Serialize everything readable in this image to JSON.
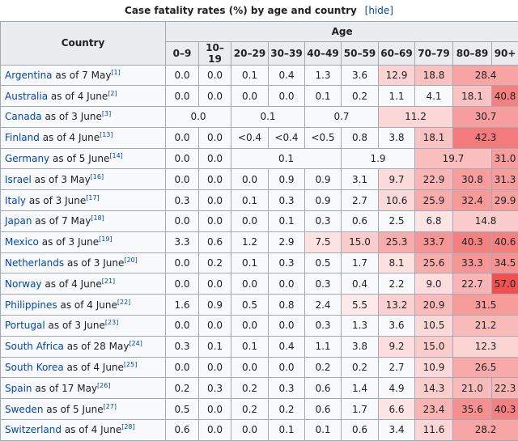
{
  "caption": {
    "title": "Case fatality rates (%) by age and country",
    "hide_label": "[hide]"
  },
  "header": {
    "country_label": "Country",
    "age_label": "Age",
    "age_groups": [
      "0–9",
      "10–19",
      "20–29",
      "30–39",
      "40–49",
      "50–59",
      "60–69",
      "70–79",
      "80–89",
      "90+"
    ]
  },
  "rows": [
    {
      "country": "Argentina",
      "date": " as of 7 May",
      "ref": "[1]",
      "cells": [
        {
          "v": "0.0",
          "s": 1
        },
        {
          "v": "0.0",
          "s": 1
        },
        {
          "v": "0.1",
          "s": 1
        },
        {
          "v": "0.4",
          "s": 1
        },
        {
          "v": "1.3",
          "s": 1
        },
        {
          "v": "3.6",
          "s": 1
        },
        {
          "v": "12.9",
          "s": 1
        },
        {
          "v": "18.8",
          "s": 1
        },
        {
          "v": "28.4",
          "s": 2
        }
      ]
    },
    {
      "country": "Australia",
      "date": " as of 4 June",
      "ref": "[2]",
      "cells": [
        {
          "v": "0.0",
          "s": 1
        },
        {
          "v": "0.0",
          "s": 1
        },
        {
          "v": "0.0",
          "s": 1
        },
        {
          "v": "0.0",
          "s": 1
        },
        {
          "v": "0.1",
          "s": 1
        },
        {
          "v": "0.2",
          "s": 1
        },
        {
          "v": "1.1",
          "s": 1
        },
        {
          "v": "4.1",
          "s": 1
        },
        {
          "v": "18.1",
          "s": 1
        },
        {
          "v": "40.8",
          "s": 1
        }
      ]
    },
    {
      "country": "Canada",
      "date": " as of 3 June",
      "ref": "[3]",
      "cells": [
        {
          "v": "0.0",
          "s": 2
        },
        {
          "v": "0.1",
          "s": 2
        },
        {
          "v": "0.7",
          "s": 2
        },
        {
          "v": "11.2",
          "s": 2
        },
        {
          "v": "30.7",
          "s": 2
        }
      ]
    },
    {
      "country": "Finland",
      "date": " as of 4 June",
      "ref": "[13]",
      "cells": [
        {
          "v": "0.0",
          "s": 1
        },
        {
          "v": "0.0",
          "s": 1
        },
        {
          "v": "<0.4",
          "s": 1
        },
        {
          "v": "<0.4",
          "s": 1
        },
        {
          "v": "<0.5",
          "s": 1
        },
        {
          "v": "0.8",
          "s": 1
        },
        {
          "v": "3.8",
          "s": 1
        },
        {
          "v": "18.1",
          "s": 1
        },
        {
          "v": "42.3",
          "s": 2
        }
      ]
    },
    {
      "country": "Germany",
      "date": " as of 5 June",
      "ref": "[14]",
      "cells": [
        {
          "v": "0.0",
          "s": 1
        },
        {
          "v": "0.0",
          "s": 1
        },
        {
          "v": "0.1",
          "s": 3
        },
        {
          "v": "1.9",
          "s": 2
        },
        {
          "v": "19.7",
          "s": 2
        },
        {
          "v": "31.0",
          "s": 1
        }
      ]
    },
    {
      "country": "Israel",
      "date": " as of 3 May",
      "ref": "[16]",
      "cells": [
        {
          "v": "0.0",
          "s": 1
        },
        {
          "v": "0.0",
          "s": 1
        },
        {
          "v": "0.0",
          "s": 1
        },
        {
          "v": "0.9",
          "s": 1
        },
        {
          "v": "0.9",
          "s": 1
        },
        {
          "v": "3.1",
          "s": 1
        },
        {
          "v": "9.7",
          "s": 1
        },
        {
          "v": "22.9",
          "s": 1
        },
        {
          "v": "30.8",
          "s": 1
        },
        {
          "v": "31.3",
          "s": 1
        }
      ]
    },
    {
      "country": "Italy",
      "date": " as of 3 June",
      "ref": "[17]",
      "cells": [
        {
          "v": "0.3",
          "s": 1
        },
        {
          "v": "0.0",
          "s": 1
        },
        {
          "v": "0.1",
          "s": 1
        },
        {
          "v": "0.3",
          "s": 1
        },
        {
          "v": "0.9",
          "s": 1
        },
        {
          "v": "2.7",
          "s": 1
        },
        {
          "v": "10.6",
          "s": 1
        },
        {
          "v": "25.9",
          "s": 1
        },
        {
          "v": "32.4",
          "s": 1
        },
        {
          "v": "29.9",
          "s": 1
        }
      ]
    },
    {
      "country": "Japan",
      "date": " as of 7 May",
      "ref": "[18]",
      "cells": [
        {
          "v": "0.0",
          "s": 1
        },
        {
          "v": "0.0",
          "s": 1
        },
        {
          "v": "0.0",
          "s": 1
        },
        {
          "v": "0.1",
          "s": 1
        },
        {
          "v": "0.3",
          "s": 1
        },
        {
          "v": "0.6",
          "s": 1
        },
        {
          "v": "2.5",
          "s": 1
        },
        {
          "v": "6.8",
          "s": 1
        },
        {
          "v": "14.8",
          "s": 2
        }
      ]
    },
    {
      "country": "Mexico",
      "date": " as of 3 June",
      "ref": "[19]",
      "cells": [
        {
          "v": "3.3",
          "s": 1
        },
        {
          "v": "0.6",
          "s": 1
        },
        {
          "v": "1.2",
          "s": 1
        },
        {
          "v": "2.9",
          "s": 1
        },
        {
          "v": "7.5",
          "s": 1
        },
        {
          "v": "15.0",
          "s": 1
        },
        {
          "v": "25.3",
          "s": 1
        },
        {
          "v": "33.7",
          "s": 1
        },
        {
          "v": "40.3",
          "s": 1
        },
        {
          "v": "40.6",
          "s": 1
        }
      ]
    },
    {
      "country": "Netherlands",
      "date": " as of 3 June",
      "ref": "[20]",
      "cells": [
        {
          "v": "0.0",
          "s": 1
        },
        {
          "v": "0.2",
          "s": 1
        },
        {
          "v": "0.1",
          "s": 1
        },
        {
          "v": "0.3",
          "s": 1
        },
        {
          "v": "0.5",
          "s": 1
        },
        {
          "v": "1.7",
          "s": 1
        },
        {
          "v": "8.1",
          "s": 1
        },
        {
          "v": "25.6",
          "s": 1
        },
        {
          "v": "33.3",
          "s": 1
        },
        {
          "v": "34.5",
          "s": 1
        }
      ]
    },
    {
      "country": "Norway",
      "date": " as of 4 June",
      "ref": "[21]",
      "cells": [
        {
          "v": "0.0",
          "s": 1
        },
        {
          "v": "0.0",
          "s": 1
        },
        {
          "v": "0.0",
          "s": 1
        },
        {
          "v": "0.0",
          "s": 1
        },
        {
          "v": "0.3",
          "s": 1
        },
        {
          "v": "0.4",
          "s": 1
        },
        {
          "v": "2.2",
          "s": 1
        },
        {
          "v": "9.0",
          "s": 1
        },
        {
          "v": "22.7",
          "s": 1
        },
        {
          "v": "57.0",
          "s": 1
        }
      ]
    },
    {
      "country": "Philippines",
      "date": " as of 4 June",
      "ref": "[22]",
      "cells": [
        {
          "v": "1.6",
          "s": 1
        },
        {
          "v": "0.9",
          "s": 1
        },
        {
          "v": "0.5",
          "s": 1
        },
        {
          "v": "0.8",
          "s": 1
        },
        {
          "v": "2.4",
          "s": 1
        },
        {
          "v": "5.5",
          "s": 1
        },
        {
          "v": "13.2",
          "s": 1
        },
        {
          "v": "20.9",
          "s": 1
        },
        {
          "v": "31.5",
          "s": 2
        }
      ]
    },
    {
      "country": "Portugal",
      "date": " as of 3 June",
      "ref": "[23]",
      "cells": [
        {
          "v": "0.0",
          "s": 1
        },
        {
          "v": "0.0",
          "s": 1
        },
        {
          "v": "0.0",
          "s": 1
        },
        {
          "v": "0.0",
          "s": 1
        },
        {
          "v": "0.3",
          "s": 1
        },
        {
          "v": "1.3",
          "s": 1
        },
        {
          "v": "3.6",
          "s": 1
        },
        {
          "v": "10.5",
          "s": 1
        },
        {
          "v": "21.2",
          "s": 2
        }
      ]
    },
    {
      "country": "South Africa",
      "date": " as of 28 May",
      "ref": "[24]",
      "cells": [
        {
          "v": "0.3",
          "s": 1
        },
        {
          "v": "0.1",
          "s": 1
        },
        {
          "v": "0.1",
          "s": 1
        },
        {
          "v": "0.4",
          "s": 1
        },
        {
          "v": "1.1",
          "s": 1
        },
        {
          "v": "3.8",
          "s": 1
        },
        {
          "v": "9.2",
          "s": 1
        },
        {
          "v": "15.0",
          "s": 1
        },
        {
          "v": "12.3",
          "s": 2
        }
      ]
    },
    {
      "country": "South Korea",
      "date": " as of 4 June",
      "ref": "[25]",
      "cells": [
        {
          "v": "0.0",
          "s": 1
        },
        {
          "v": "0.0",
          "s": 1
        },
        {
          "v": "0.0",
          "s": 1
        },
        {
          "v": "0.0",
          "s": 1
        },
        {
          "v": "0.2",
          "s": 1
        },
        {
          "v": "0.2",
          "s": 1
        },
        {
          "v": "2.7",
          "s": 1
        },
        {
          "v": "10.9",
          "s": 1
        },
        {
          "v": "26.5",
          "s": 2
        }
      ]
    },
    {
      "country": "Spain",
      "date": " as of 17 May",
      "ref": "[26]",
      "cells": [
        {
          "v": "0.2",
          "s": 1
        },
        {
          "v": "0.3",
          "s": 1
        },
        {
          "v": "0.2",
          "s": 1
        },
        {
          "v": "0.3",
          "s": 1
        },
        {
          "v": "0.6",
          "s": 1
        },
        {
          "v": "1.4",
          "s": 1
        },
        {
          "v": "4.9",
          "s": 1
        },
        {
          "v": "14.3",
          "s": 1
        },
        {
          "v": "21.0",
          "s": 1
        },
        {
          "v": "22.3",
          "s": 1
        }
      ]
    },
    {
      "country": "Sweden",
      "date": " as of 5 June",
      "ref": "[27]",
      "cells": [
        {
          "v": "0.5",
          "s": 1
        },
        {
          "v": "0.0",
          "s": 1
        },
        {
          "v": "0.2",
          "s": 1
        },
        {
          "v": "0.2",
          "s": 1
        },
        {
          "v": "0.6",
          "s": 1
        },
        {
          "v": "1.7",
          "s": 1
        },
        {
          "v": "6.6",
          "s": 1
        },
        {
          "v": "23.4",
          "s": 1
        },
        {
          "v": "35.6",
          "s": 1
        },
        {
          "v": "40.3",
          "s": 1
        }
      ]
    },
    {
      "country": "Switzerland",
      "date": " as of 4 June",
      "ref": "[28]",
      "cells": [
        {
          "v": "0.6",
          "s": 1
        },
        {
          "v": "0.0",
          "s": 1
        },
        {
          "v": "0.0",
          "s": 1
        },
        {
          "v": "0.1",
          "s": 1
        },
        {
          "v": "0.1",
          "s": 1
        },
        {
          "v": "0.6",
          "s": 1
        },
        {
          "v": "3.4",
          "s": 1
        },
        {
          "v": "11.6",
          "s": 1
        },
        {
          "v": "28.2",
          "s": 2
        }
      ]
    }
  ]
}
